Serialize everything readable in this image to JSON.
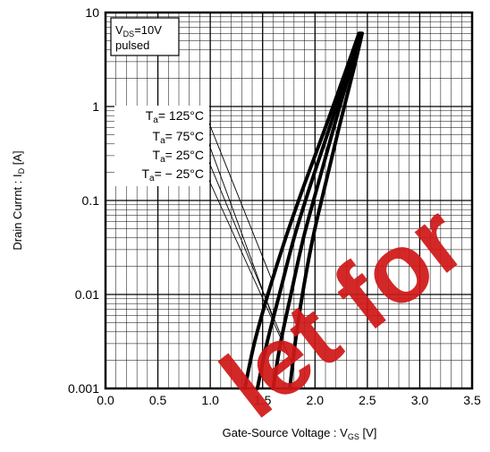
{
  "chart_data": {
    "type": "line",
    "xlabel": {
      "main": "Gate-Source Voltage :  V",
      "sub": "GS",
      "unit": " [V]"
    },
    "ylabel": {
      "main": "Drain Currnt :  I",
      "sub": "D",
      "unit": " [A]"
    },
    "xlim": [
      0,
      3.5
    ],
    "ylim": [
      0.001,
      10
    ],
    "yscale": "log",
    "grid": true,
    "x_ticks": [
      "0.0",
      "0.5",
      "1.0",
      "1.5",
      "2.0",
      "2.5",
      "3.0",
      "3.5"
    ],
    "x_tick_values": [
      0,
      0.5,
      1.0,
      1.5,
      2.0,
      2.5,
      3.0,
      3.5
    ],
    "y_ticks": [
      "10",
      "1",
      "0.1",
      "0.01",
      "0.001"
    ],
    "y_tick_values": [
      10,
      1,
      0.1,
      0.01,
      0.001
    ],
    "condition_box": {
      "line1_main": "V",
      "line1_sub": "DS",
      "line1_rest": "=10V",
      "line2": "pulsed"
    },
    "series": [
      {
        "name": "Ta= 125°C",
        "label_main": "T",
        "label_sub": "a",
        "label_rest": "= 125°C",
        "x": [
          1.33,
          1.42,
          1.55,
          1.72,
          1.9,
          2.1,
          2.3,
          2.42
        ],
        "y": [
          0.001,
          0.003,
          0.01,
          0.04,
          0.15,
          0.6,
          2.5,
          6
        ]
      },
      {
        "name": "Ta= 75°C",
        "label_main": "T",
        "label_sub": "a",
        "label_rest": "= 75°C",
        "x": [
          1.45,
          1.54,
          1.66,
          1.8,
          1.96,
          2.14,
          2.32,
          2.43
        ],
        "y": [
          0.001,
          0.003,
          0.01,
          0.04,
          0.15,
          0.6,
          2.5,
          6
        ]
      },
      {
        "name": "Ta= 25°C",
        "label_main": "T",
        "label_sub": "a",
        "label_rest": "= 25°C",
        "x": [
          1.6,
          1.67,
          1.77,
          1.89,
          2.03,
          2.18,
          2.34,
          2.44
        ],
        "y": [
          0.001,
          0.003,
          0.01,
          0.04,
          0.15,
          0.6,
          2.5,
          6
        ]
      },
      {
        "name": "Ta= − 25°C",
        "label_main": "T",
        "label_sub": "a",
        "label_rest": "= − 25°C",
        "x": [
          1.76,
          1.81,
          1.88,
          1.98,
          2.1,
          2.23,
          2.37,
          2.45
        ],
        "y": [
          0.001,
          0.003,
          0.01,
          0.04,
          0.15,
          0.6,
          2.5,
          6
        ]
      }
    ],
    "watermark": "let for"
  }
}
